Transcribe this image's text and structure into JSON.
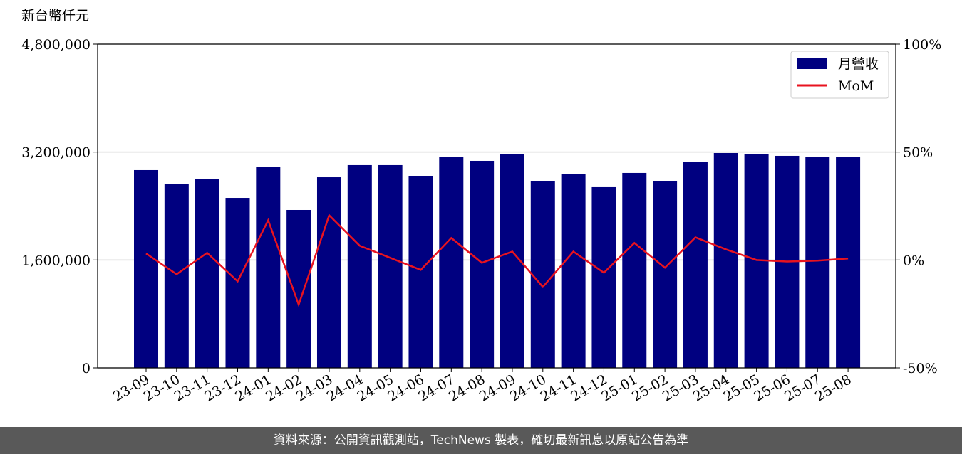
{
  "chart_data": {
    "type": "bar_line",
    "y_label": "新台幣仟元",
    "categories": [
      "23-09",
      "23-10",
      "23-11",
      "23-12",
      "24-01",
      "24-02",
      "24-03",
      "24-04",
      "24-05",
      "24-06",
      "24-07",
      "24-08",
      "24-09",
      "24-10",
      "24-11",
      "24-12",
      "25-01",
      "25-02",
      "25-03",
      "25-04",
      "25-05",
      "25-06",
      "25-07",
      "25-08"
    ],
    "series": [
      {
        "name": "月營收",
        "color": "#000080",
        "values": [
          2933000,
          2722000,
          2806000,
          2521000,
          2975000,
          2342000,
          2827000,
          3007000,
          3007000,
          2848000,
          3123000,
          3070000,
          3175000,
          2774000,
          2870000,
          2680000,
          2891000,
          2774000,
          3059000,
          3186000,
          3175000,
          3144000,
          3133000,
          3133000
        ]
      },
      {
        "name": "MoM",
        "color": "#e8131f",
        "axis": "y2",
        "values": [
          3.0,
          -6.6,
          3.3,
          -9.9,
          18.4,
          -20.7,
          20.7,
          6.6,
          1.0,
          -4.6,
          10.2,
          -1.3,
          3.9,
          -12.5,
          3.9,
          -5.9,
          7.9,
          -3.6,
          10.5,
          4.9,
          0.0,
          -0.7,
          -0.3,
          0.7
        ]
      }
    ],
    "ylim": [
      0,
      4800000
    ],
    "yticks": [
      {
        "value": 0,
        "label": "0"
      },
      {
        "value": 1600000,
        "label": "1,600,000"
      },
      {
        "value": 3200000,
        "label": "3,200,000"
      },
      {
        "value": 4800000,
        "label": "4,800,000"
      }
    ],
    "y2lim": [
      -50,
      100
    ],
    "y2ticks": [
      {
        "value": -50,
        "label": "-50%"
      },
      {
        "value": 0,
        "label": "0%"
      },
      {
        "value": 50,
        "label": "50%"
      },
      {
        "value": 100,
        "label": "100%"
      }
    ],
    "grid": true,
    "legend": "upper right"
  },
  "footer": "資料來源：公開資訊觀測站，TechNews 製表，確切最新訊息以原站公告為準"
}
